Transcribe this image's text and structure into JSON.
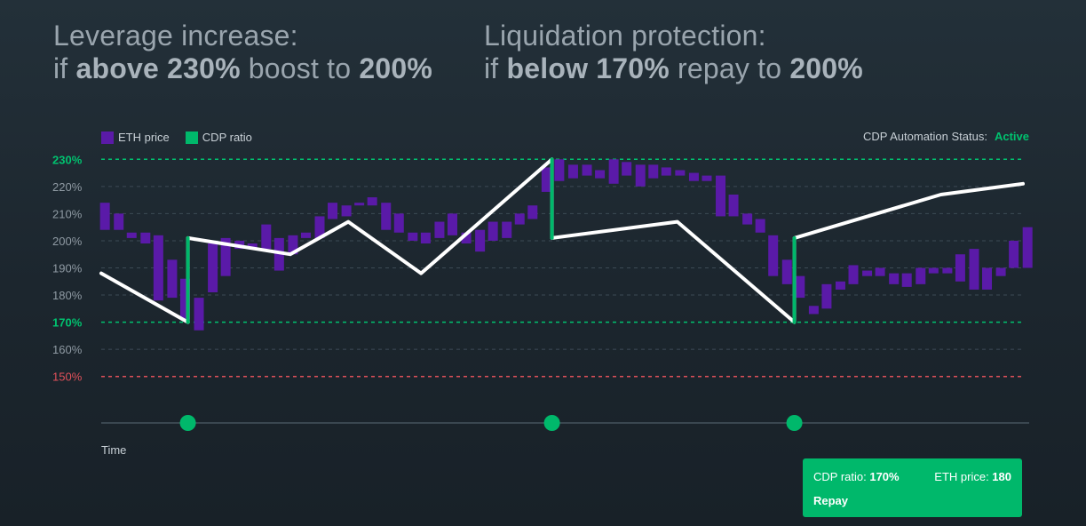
{
  "headlines": {
    "left": {
      "line1": "Leverage increase:",
      "pre": "if ",
      "bold1": "above 230%",
      "mid": " boost to ",
      "bold2": "200%"
    },
    "right": {
      "line1": "Liquidation protection:",
      "pre": "if ",
      "bold1": "below 170%",
      "mid": " repay to ",
      "bold2": "200%"
    }
  },
  "legend": {
    "eth_label": "ETH price",
    "cdp_label": "CDP ratio"
  },
  "status": {
    "label": "CDP Automation Status:",
    "value": "Active"
  },
  "colors": {
    "eth": "#5a1aa8",
    "cdp": "#00b86b",
    "ratio_line": "#ffffff",
    "threshold": "#00c26f",
    "liquidation": "#e0505a",
    "grid": "#3c4a55",
    "timeline": "#3a4750",
    "card": "#00b86b"
  },
  "time_label": "Time",
  "info_card": {
    "ratio_label": "CDP ratio: ",
    "ratio_value": "170%",
    "price_label": "ETH price: ",
    "price_value": "180",
    "action": "Repay"
  },
  "chart_data": {
    "type": "line",
    "ylim": [
      145,
      235
    ],
    "x_range": [
      0,
      100
    ],
    "xlabel": "Time",
    "y_ticks": [
      {
        "value": 230,
        "label": "230%",
        "style": "boost"
      },
      {
        "value": 220,
        "label": "220%",
        "style": "normal"
      },
      {
        "value": 210,
        "label": "210%",
        "style": "normal"
      },
      {
        "value": 200,
        "label": "200%",
        "style": "normal"
      },
      {
        "value": 190,
        "label": "190%",
        "style": "normal"
      },
      {
        "value": 180,
        "label": "180%",
        "style": "normal"
      },
      {
        "value": 170,
        "label": "170%",
        "style": "repay"
      },
      {
        "value": 160,
        "label": "160%",
        "style": "normal"
      },
      {
        "value": 150,
        "label": "150%",
        "style": "liquidation"
      }
    ],
    "series": [
      {
        "name": "CDP ratio",
        "points": [
          [
            0,
            188
          ],
          [
            9.4,
            170
          ],
          [
            9.4,
            201
          ],
          [
            20.5,
            195
          ],
          [
            26.8,
            207
          ],
          [
            34.7,
            188
          ],
          [
            48.9,
            230
          ],
          [
            48.9,
            201
          ],
          [
            62.5,
            207
          ],
          [
            75.2,
            170
          ],
          [
            75.2,
            201
          ],
          [
            91.1,
            217
          ],
          [
            100,
            221
          ]
        ]
      },
      {
        "name": "ETH price",
        "candles": [
          [
            0.4,
            204,
            214
          ],
          [
            1.9,
            204,
            210
          ],
          [
            3.3,
            201,
            203
          ],
          [
            4.8,
            199,
            203
          ],
          [
            6.2,
            178,
            202
          ],
          [
            7.7,
            179,
            193
          ],
          [
            9.1,
            171,
            186
          ],
          [
            10.6,
            167,
            179
          ],
          [
            12.1,
            181,
            199
          ],
          [
            13.5,
            187,
            201
          ],
          [
            15.0,
            197,
            200
          ],
          [
            16.4,
            197,
            199
          ],
          [
            17.9,
            197,
            206
          ],
          [
            19.3,
            189,
            201
          ],
          [
            20.8,
            195,
            202
          ],
          [
            22.2,
            201,
            203
          ],
          [
            23.7,
            201,
            209
          ],
          [
            25.1,
            208,
            214
          ],
          [
            26.6,
            209,
            213
          ],
          [
            28.0,
            213,
            214
          ],
          [
            29.4,
            213,
            216
          ],
          [
            30.9,
            204,
            214
          ],
          [
            32.3,
            203,
            210
          ],
          [
            33.8,
            200,
            203
          ],
          [
            35.2,
            199,
            203
          ],
          [
            36.7,
            201,
            207
          ],
          [
            38.1,
            202,
            210
          ],
          [
            39.6,
            199,
            203
          ],
          [
            41.1,
            196,
            204
          ],
          [
            42.5,
            200,
            207
          ],
          [
            44.0,
            201,
            207
          ],
          [
            45.4,
            206,
            210
          ],
          [
            46.8,
            208,
            213
          ],
          [
            48.3,
            218,
            227
          ],
          [
            49.7,
            222,
            230
          ],
          [
            51.2,
            223,
            228
          ],
          [
            52.7,
            224,
            228
          ],
          [
            54.1,
            223,
            226
          ],
          [
            55.6,
            221,
            230
          ],
          [
            57.0,
            224,
            229
          ],
          [
            58.5,
            220,
            228
          ],
          [
            59.9,
            223,
            228
          ],
          [
            61.3,
            224,
            227
          ],
          [
            62.8,
            224,
            226
          ],
          [
            64.3,
            222,
            225
          ],
          [
            65.7,
            222,
            224
          ],
          [
            67.2,
            209,
            224
          ],
          [
            68.6,
            209,
            217
          ],
          [
            70.1,
            206,
            210
          ],
          [
            71.5,
            203,
            208
          ],
          [
            72.9,
            187,
            202
          ],
          [
            74.4,
            184,
            193
          ],
          [
            75.8,
            179,
            187
          ],
          [
            77.3,
            173,
            176
          ],
          [
            78.7,
            175,
            184
          ],
          [
            80.2,
            182,
            185
          ],
          [
            81.6,
            184,
            191
          ],
          [
            83.1,
            187,
            189
          ],
          [
            84.5,
            187,
            190
          ],
          [
            86.0,
            184,
            188
          ],
          [
            87.4,
            183,
            188
          ],
          [
            88.9,
            184,
            190
          ],
          [
            90.3,
            188,
            190
          ],
          [
            91.8,
            188,
            190
          ],
          [
            93.2,
            185,
            195
          ],
          [
            94.7,
            182,
            197
          ],
          [
            96.1,
            182,
            190
          ],
          [
            97.6,
            187,
            190
          ],
          [
            99.0,
            190,
            200
          ],
          [
            100.5,
            190,
            205
          ]
        ]
      }
    ],
    "events": [
      {
        "x": 9.4,
        "from": 170,
        "to": 201,
        "action": "repay"
      },
      {
        "x": 48.9,
        "from": 230,
        "to": 201,
        "action": "boost"
      },
      {
        "x": 75.2,
        "from": 170,
        "to": 201,
        "action": "repay"
      }
    ]
  }
}
